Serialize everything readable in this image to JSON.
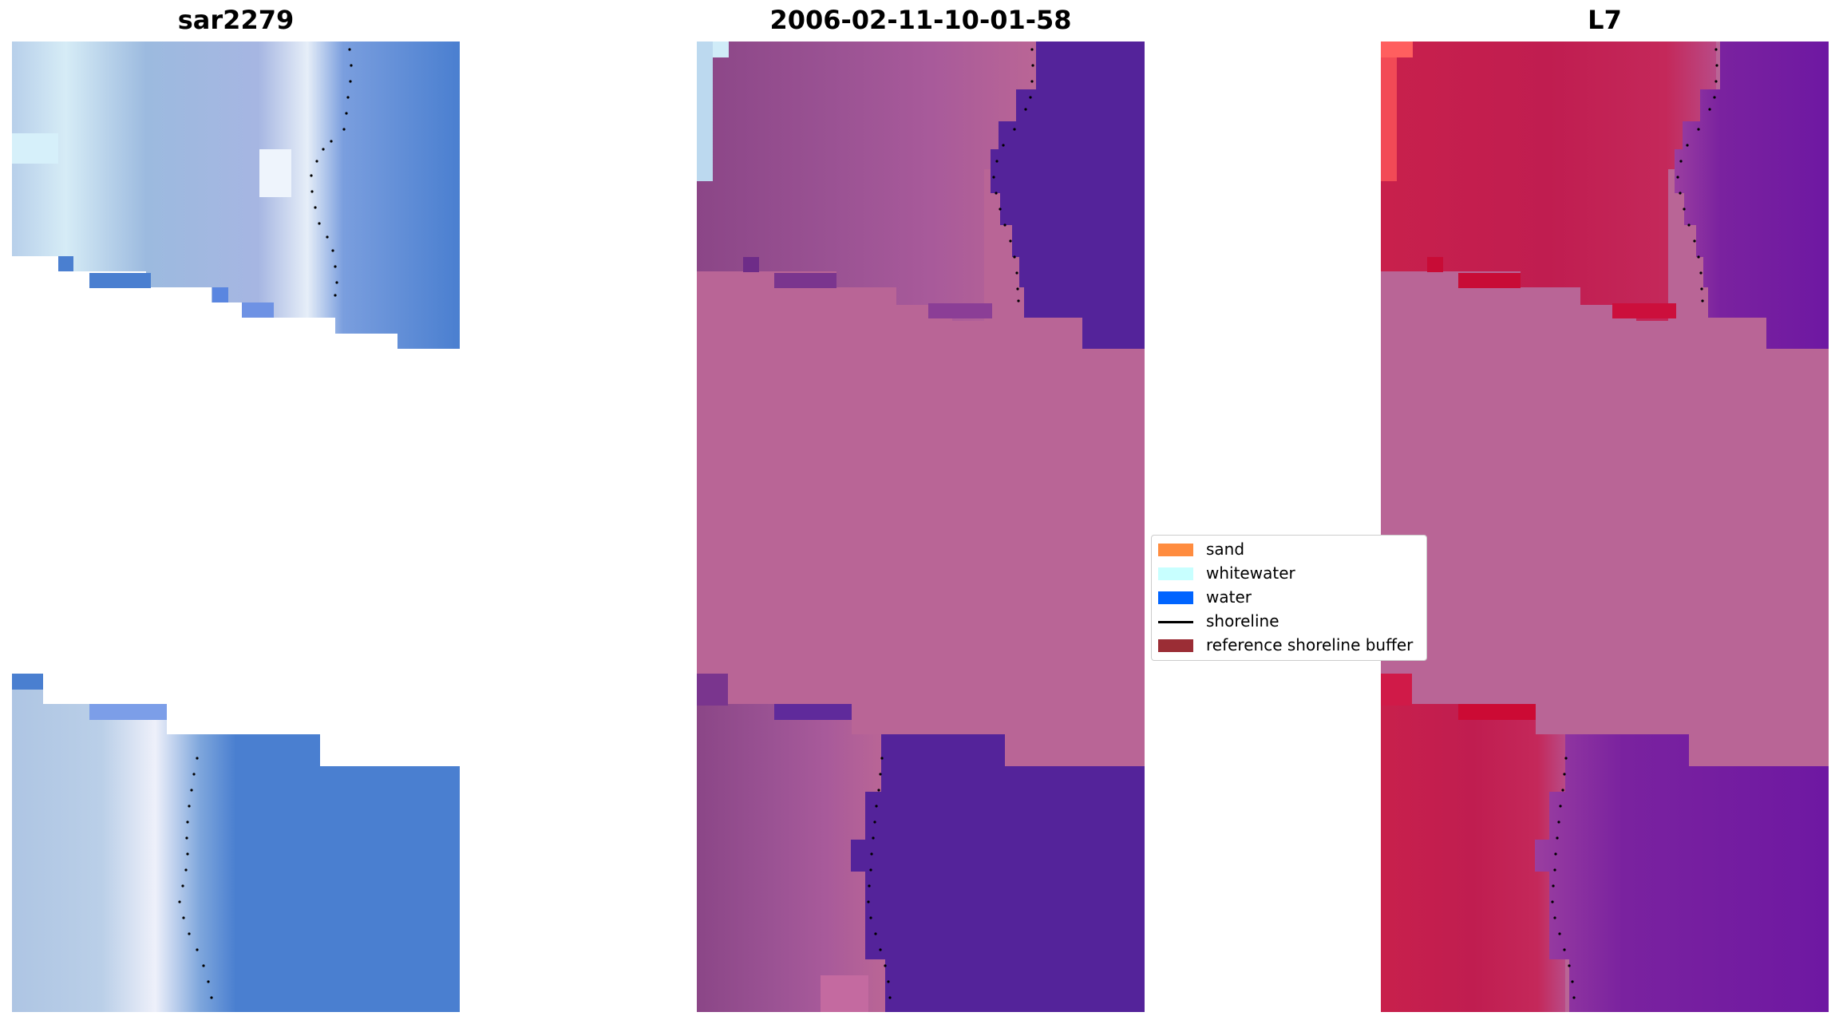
{
  "panels": [
    {
      "title": "sar2279"
    },
    {
      "title": "2006-02-11-10-01-58"
    },
    {
      "title": "L7"
    }
  ],
  "legend": {
    "items": [
      {
        "label": "sand",
        "kind": "patch",
        "color": "#ff8c3f"
      },
      {
        "label": "whitewater",
        "kind": "patch",
        "color": "#c8ffff"
      },
      {
        "label": "water",
        "kind": "patch",
        "color": "#0064ff"
      },
      {
        "label": "shoreline",
        "kind": "line",
        "color": "#000000"
      },
      {
        "label": "reference shoreline buffer",
        "kind": "patch",
        "color": "#9b2d35"
      }
    ]
  },
  "colors": {
    "sar_land": "#a0b8dc",
    "sar_water": "#4a7fd0",
    "mid_buffer": "#b96596",
    "mid_land": "#8e4a88",
    "mid_water": "#54239a",
    "l7_buffer": "#b96596",
    "l7_land": "#c41e52",
    "l7_water": "#7a229f"
  }
}
